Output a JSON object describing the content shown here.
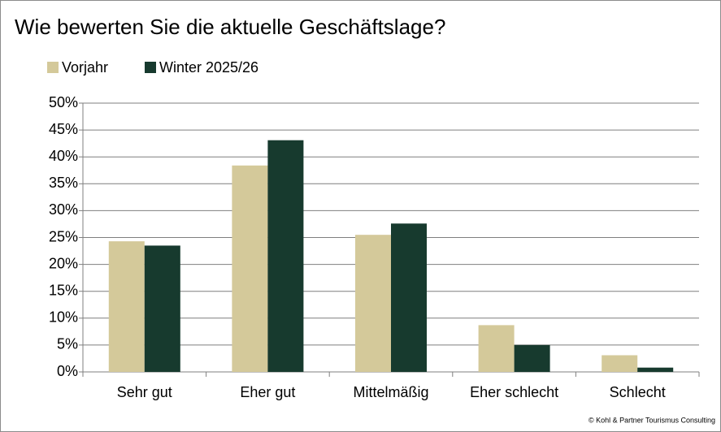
{
  "chart_data": {
    "type": "bar",
    "title": "Wie bewerten Sie die aktuelle Geschäftslage?",
    "categories": [
      "Sehr gut",
      "Eher gut",
      "Mittelmäßig",
      "Eher schlecht",
      "Schlecht"
    ],
    "series": [
      {
        "name": "Vorjahr",
        "color": "#d4c99a",
        "values": [
          24.3,
          38.4,
          25.5,
          8.7,
          3.1
        ]
      },
      {
        "name": "Winter 2025/26",
        "color": "#173a2e",
        "values": [
          23.5,
          43.1,
          27.6,
          5.0,
          0.8
        ]
      }
    ],
    "ylim": [
      0,
      50
    ],
    "yticks": [
      {
        "value": 0,
        "label": "0%"
      },
      {
        "value": 5,
        "label": "5%"
      },
      {
        "value": 10,
        "label": "10%"
      },
      {
        "value": 15,
        "label": "15%"
      },
      {
        "value": 20,
        "label": "20%"
      },
      {
        "value": 25,
        "label": "25%"
      },
      {
        "value": 30,
        "label": "30%"
      },
      {
        "value": 35,
        "label": "35%"
      },
      {
        "value": 40,
        "label": "40%"
      },
      {
        "value": 45,
        "label": "45%"
      },
      {
        "value": 50,
        "label": "50%"
      }
    ],
    "grid": true,
    "legend": "top-left",
    "footnote": "© Kohl & Partner Tourismus Consulting"
  }
}
